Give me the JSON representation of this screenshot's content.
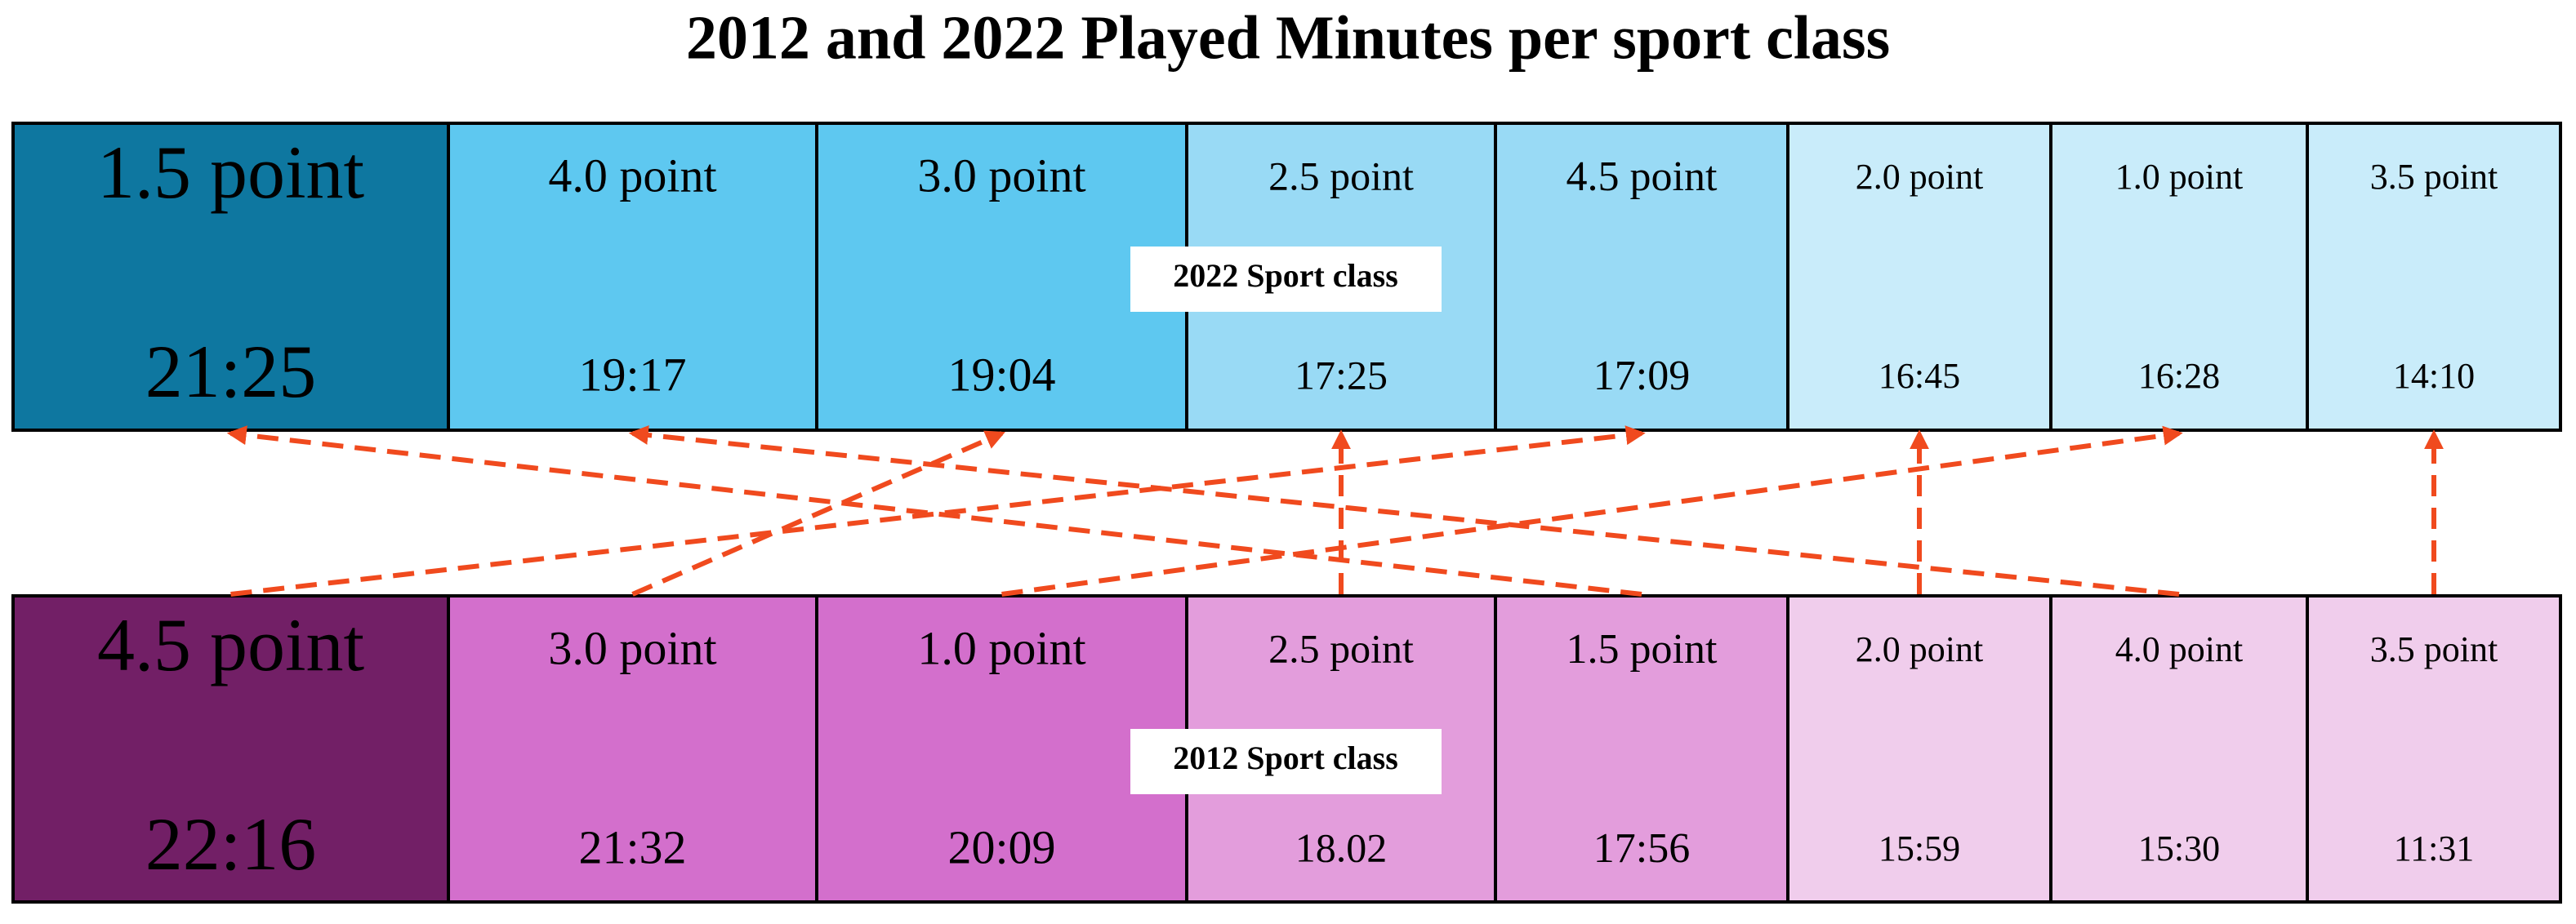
{
  "title": "2012 and 2022 Played Minutes per sport class",
  "rows": [
    {
      "caption": "2022 Sport class",
      "cells": [
        {
          "label": "1.5 point",
          "time": "21:25"
        },
        {
          "label": "4.0 point",
          "time": "19:17"
        },
        {
          "label": "3.0 point",
          "time": "19:04"
        },
        {
          "label": "2.5 point",
          "time": "17:25"
        },
        {
          "label": "4.5 point",
          "time": "17:09"
        },
        {
          "label": "2.0 point",
          "time": "16:45"
        },
        {
          "label": "1.0 point",
          "time": "16:28"
        },
        {
          "label": "3.5 point",
          "time": "14:10"
        }
      ]
    },
    {
      "caption": "2012 Sport class",
      "cells": [
        {
          "label": "4.5 point",
          "time": "22:16"
        },
        {
          "label": "3.0 point",
          "time": "21:32"
        },
        {
          "label": "1.0 point",
          "time": "20:09"
        },
        {
          "label": "2.5 point",
          "time": "18.02"
        },
        {
          "label": "1.5 point",
          "time": "17:56"
        },
        {
          "label": "2.0 point",
          "time": "15:59"
        },
        {
          "label": "4.0 point",
          "time": "15:30"
        },
        {
          "label": "3.5 point",
          "time": "11:31"
        }
      ]
    }
  ]
}
